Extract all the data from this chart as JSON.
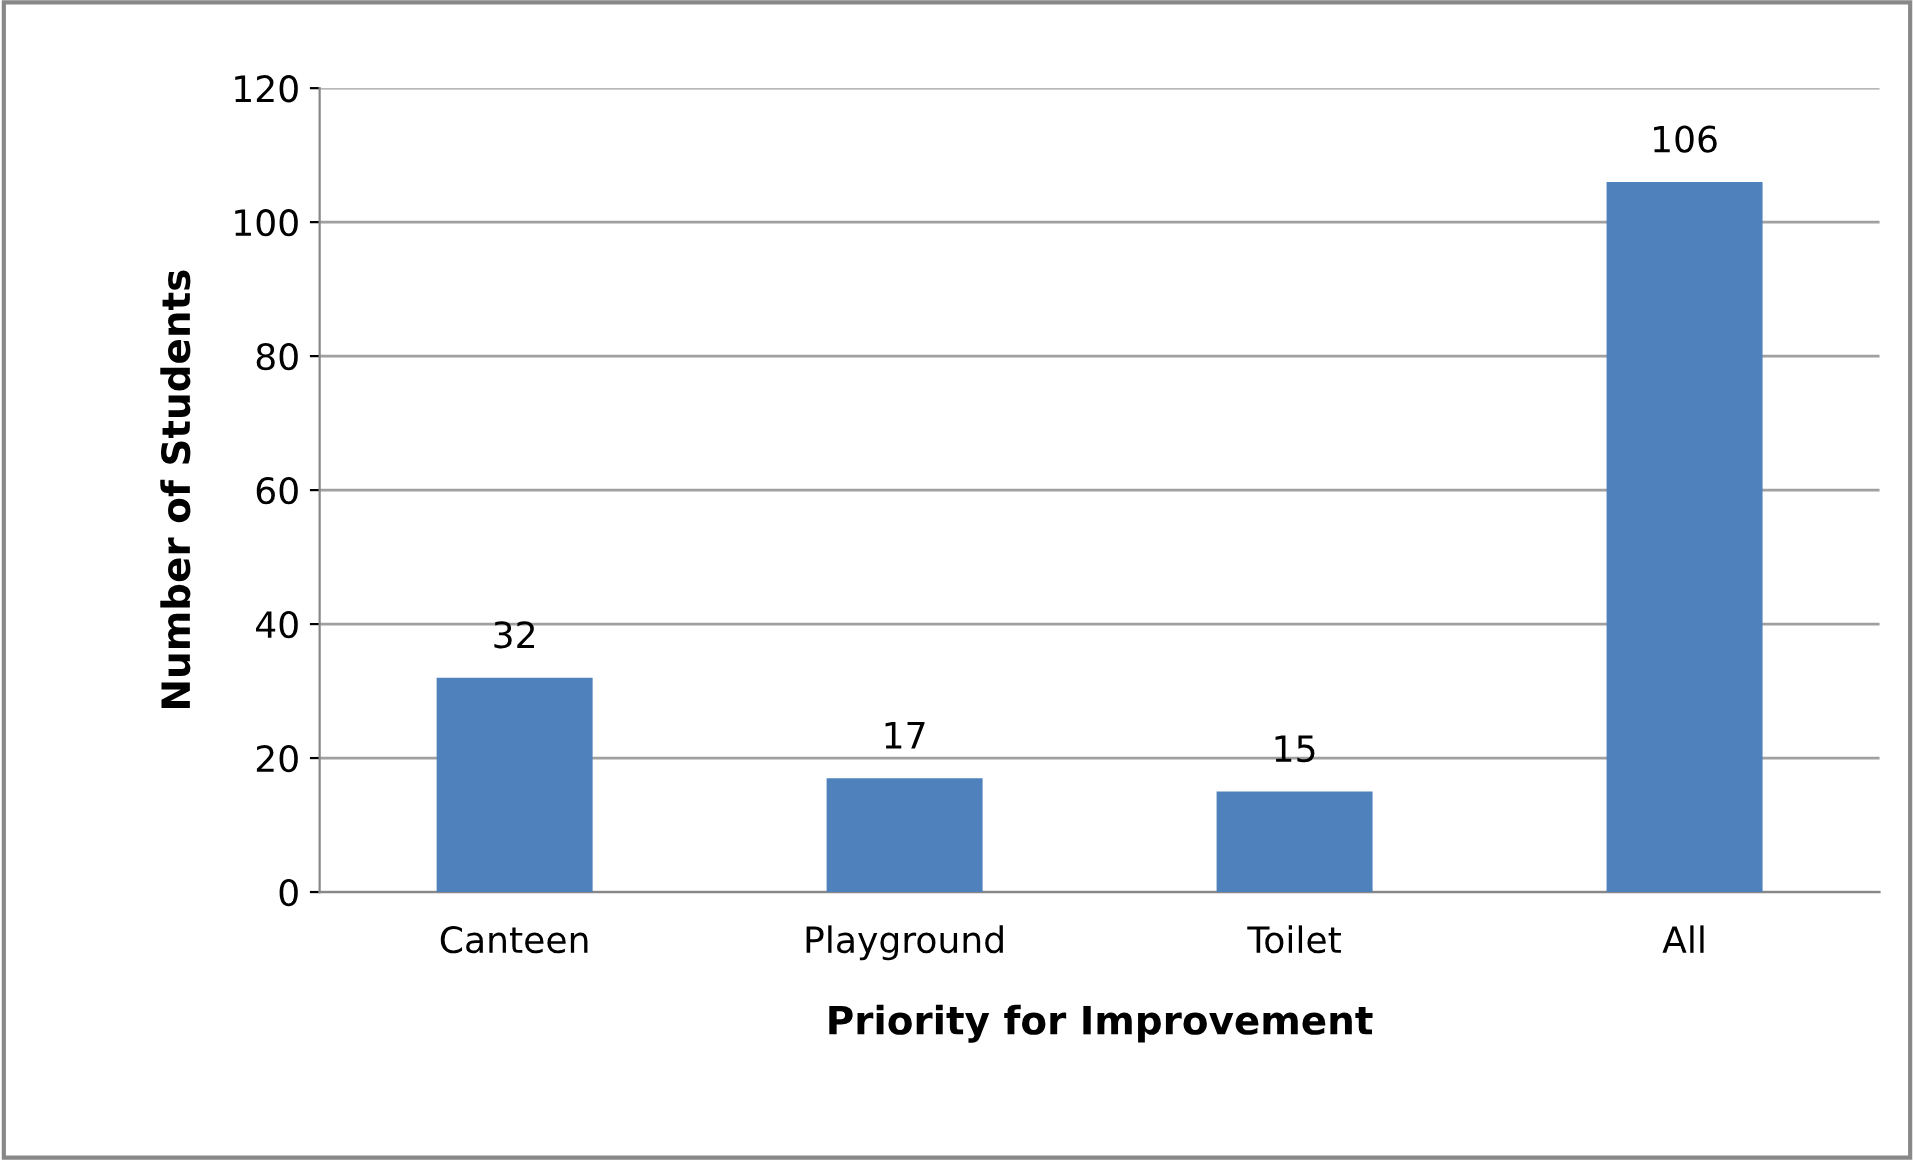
{
  "chart_data": {
    "type": "bar",
    "xlabel": "Priority for Improvement",
    "ylabel": "Number of Students",
    "categories": [
      "Canteen",
      "Playground",
      "Toilet",
      "All"
    ],
    "values": [
      32,
      17,
      15,
      106
    ],
    "color": "#4f81bd",
    "ylim": [
      0,
      120
    ],
    "yticks": [
      0,
      20,
      40,
      60,
      80,
      100,
      120
    ],
    "grid": "y",
    "data_labels": true
  }
}
